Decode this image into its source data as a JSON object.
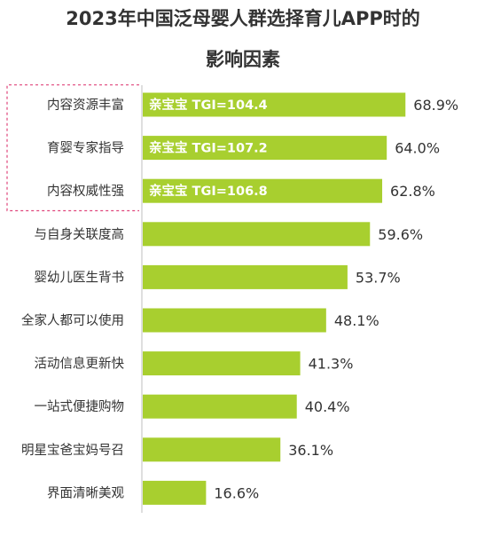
{
  "chart_data": {
    "type": "bar",
    "orientation": "horizontal",
    "title_lines": [
      "2023年中国泛母婴人群选择育儿APP时的",
      "影响因素"
    ],
    "categories": [
      "内容资源丰富",
      "育婴专家指导",
      "内容权威性强",
      "与自身关联度高",
      "婴幼儿医生背书",
      "全家人都可以使用",
      "活动信息更新快",
      "一站式便捷购物",
      "明星宝爸宝妈号召",
      "界面清晰美观"
    ],
    "values": [
      68.9,
      64.0,
      62.8,
      59.6,
      53.7,
      48.1,
      41.3,
      40.4,
      36.1,
      16.6
    ],
    "value_labels": [
      "68.9%",
      "64.0%",
      "62.8%",
      "59.6%",
      "53.7%",
      "48.1%",
      "41.3%",
      "40.4%",
      "36.1%",
      "16.6%"
    ],
    "bar_annotations": [
      "亲宝宝  TGI=104.4",
      "亲宝宝  TGI=107.2",
      "亲宝宝  TGI=106.8",
      "",
      "",
      "",
      "",
      "",
      "",
      ""
    ],
    "xlim": [
      0,
      100
    ],
    "grid": false,
    "legend": "none",
    "bar_color": "#A8CF2F",
    "highlight_border_color": "#E0457B"
  }
}
